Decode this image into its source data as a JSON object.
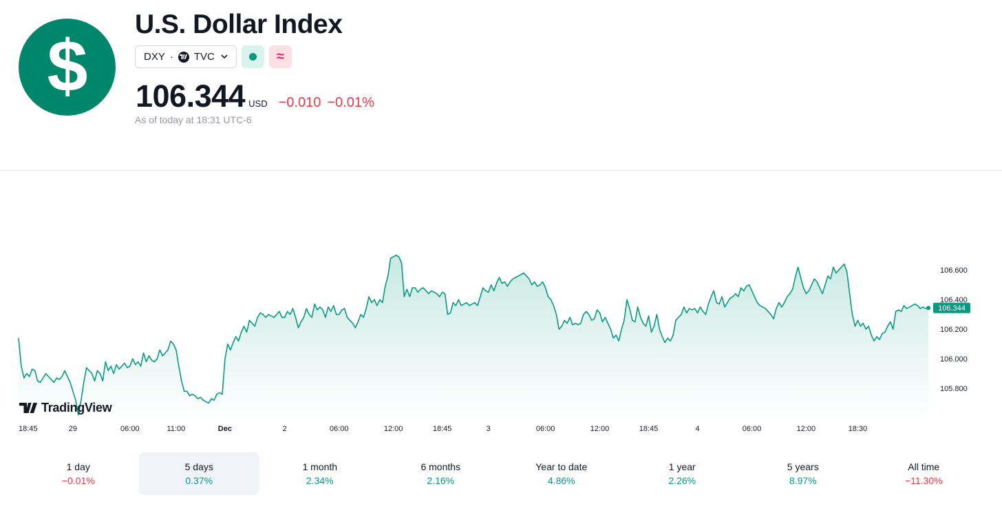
{
  "header": {
    "title": "U.S. Dollar Index",
    "symbol": "DXY",
    "exchange": "TVC",
    "price": "106.344",
    "currency": "USD",
    "change": "−0.010",
    "change_pct": "−0.01%",
    "as_of": "As of today at 18:31 UTC-6",
    "accent_color": "#00866a",
    "negative_color": "#f23645",
    "positive_color": "#089981",
    "icons": {
      "logo": "dollar-sign-icon",
      "green_chip": "green-dot-icon",
      "pink_chip": "approx-icon"
    },
    "pink_chip_glyph": "≈"
  },
  "watermark": "TradingView",
  "chart_data": {
    "type": "area",
    "title": "",
    "ylim": [
      105.6,
      106.75
    ],
    "y_ticks": [
      105.8,
      106.0,
      106.2,
      106.4,
      106.6
    ],
    "y_tick_labels": [
      "105.800",
      "106.000",
      "106.200",
      "106.400",
      "106.600"
    ],
    "x_tick_labels": [
      "18:45",
      "29",
      "06:00",
      "11:00",
      "Dec",
      "2",
      "06:00",
      "12:00",
      "18:45",
      "3",
      "06:00",
      "12:00",
      "18:45",
      "4",
      "06:00",
      "12:00",
      "18:30"
    ],
    "x_tick_index": [
      0,
      20,
      41,
      58,
      76,
      98,
      118,
      138,
      156,
      173,
      194,
      214,
      232,
      250,
      270,
      290,
      309
    ],
    "last_value_label": "106.344",
    "line_color": "#089981",
    "values": [
      106.14,
      105.95,
      105.87,
      105.9,
      105.88,
      105.93,
      105.92,
      105.85,
      105.84,
      105.87,
      105.9,
      105.88,
      105.86,
      105.84,
      105.87,
      105.86,
      105.88,
      105.92,
      105.88,
      105.84,
      105.78,
      105.72,
      105.62,
      105.72,
      105.84,
      105.94,
      105.92,
      105.9,
      105.85,
      105.92,
      105.9,
      105.85,
      105.98,
      105.92,
      105.95,
      105.9,
      105.96,
      105.93,
      105.95,
      105.97,
      105.94,
      105.95,
      106.0,
      105.96,
      105.98,
      105.95,
      106.04,
      105.98,
      106.02,
      105.99,
      105.98,
      106.0,
      106.06,
      106.02,
      106.04,
      106.06,
      106.12,
      106.1,
      106.06,
      105.95,
      105.85,
      105.78,
      105.78,
      105.75,
      105.76,
      105.75,
      105.73,
      105.74,
      105.72,
      105.71,
      105.7,
      105.73,
      105.72,
      105.76,
      105.77,
      105.76,
      106.0,
      106.1,
      106.06,
      106.11,
      106.15,
      106.12,
      106.18,
      106.22,
      106.18,
      106.26,
      106.24,
      106.22,
      106.28,
      106.31,
      106.3,
      106.28,
      106.3,
      106.29,
      106.28,
      106.3,
      106.32,
      106.28,
      106.28,
      106.32,
      106.3,
      106.34,
      106.28,
      106.21,
      106.25,
      106.28,
      106.34,
      106.3,
      106.28,
      106.37,
      106.33,
      106.35,
      106.33,
      106.28,
      106.35,
      106.32,
      106.36,
      106.3,
      106.3,
      106.33,
      106.34,
      106.28,
      106.26,
      106.24,
      106.21,
      106.25,
      106.3,
      106.28,
      106.34,
      106.42,
      106.38,
      106.4,
      106.36,
      106.4,
      106.38,
      106.49,
      106.56,
      106.68,
      106.69,
      106.7,
      106.69,
      106.65,
      106.42,
      106.47,
      106.42,
      106.48,
      106.48,
      106.45,
      106.47,
      106.48,
      106.46,
      106.44,
      106.46,
      106.45,
      106.44,
      106.42,
      106.45,
      106.44,
      106.3,
      106.31,
      106.38,
      106.36,
      106.4,
      106.36,
      106.37,
      106.38,
      106.36,
      106.37,
      106.38,
      106.36,
      106.42,
      106.48,
      106.46,
      106.45,
      106.5,
      106.46,
      106.51,
      106.55,
      106.51,
      106.52,
      106.49,
      106.52,
      106.54,
      106.55,
      106.56,
      106.57,
      106.58,
      106.56,
      106.54,
      106.5,
      106.52,
      106.49,
      106.5,
      106.52,
      106.48,
      106.42,
      106.4,
      106.36,
      106.3,
      106.2,
      106.22,
      106.26,
      106.24,
      106.28,
      106.23,
      106.24,
      106.23,
      106.24,
      106.3,
      106.32,
      106.3,
      106.26,
      106.27,
      106.33,
      106.31,
      106.25,
      106.28,
      106.24,
      106.2,
      106.14,
      106.16,
      106.12,
      106.2,
      106.26,
      106.4,
      106.34,
      106.26,
      106.25,
      106.35,
      106.28,
      106.24,
      106.22,
      106.29,
      106.18,
      106.22,
      106.3,
      106.2,
      106.15,
      106.11,
      106.14,
      106.12,
      106.16,
      106.26,
      106.28,
      106.3,
      106.35,
      106.31,
      106.34,
      106.33,
      106.34,
      106.31,
      106.35,
      106.32,
      106.3,
      106.37,
      106.42,
      106.46,
      106.38,
      106.37,
      106.42,
      106.35,
      106.38,
      106.41,
      106.42,
      106.44,
      106.42,
      106.48,
      106.46,
      106.49,
      106.5,
      106.46,
      106.42,
      106.38,
      106.36,
      106.35,
      106.34,
      106.32,
      106.3,
      106.27,
      106.34,
      106.38,
      106.35,
      106.38,
      106.42,
      106.44,
      106.47,
      106.55,
      106.62,
      106.55,
      106.48,
      106.44,
      106.46,
      106.5,
      106.54,
      106.52,
      106.48,
      106.44,
      106.5,
      106.56,
      106.54,
      106.62,
      106.58,
      106.6,
      106.62,
      106.64,
      106.59,
      106.44,
      106.3,
      106.22,
      106.26,
      106.22,
      106.24,
      106.2,
      106.22,
      106.16,
      106.12,
      106.15,
      106.13,
      106.17,
      106.18,
      106.22,
      106.25,
      106.2,
      106.32,
      106.33,
      106.32,
      106.36,
      106.34,
      106.35,
      106.36,
      106.37,
      106.36,
      106.34,
      106.35,
      106.34,
      106.344
    ]
  },
  "periods": [
    {
      "label": "1 day",
      "value": "−0.01%",
      "trend": "neg"
    },
    {
      "label": "5 days",
      "value": "0.37%",
      "trend": "pos",
      "active": true
    },
    {
      "label": "1 month",
      "value": "2.34%",
      "trend": "pos"
    },
    {
      "label": "6 months",
      "value": "2.16%",
      "trend": "pos"
    },
    {
      "label": "Year to date",
      "value": "4.86%",
      "trend": "pos"
    },
    {
      "label": "1 year",
      "value": "2.26%",
      "trend": "pos"
    },
    {
      "label": "5 years",
      "value": "8.97%",
      "trend": "pos"
    },
    {
      "label": "All time",
      "value": "−11.30%",
      "trend": "neg"
    }
  ]
}
